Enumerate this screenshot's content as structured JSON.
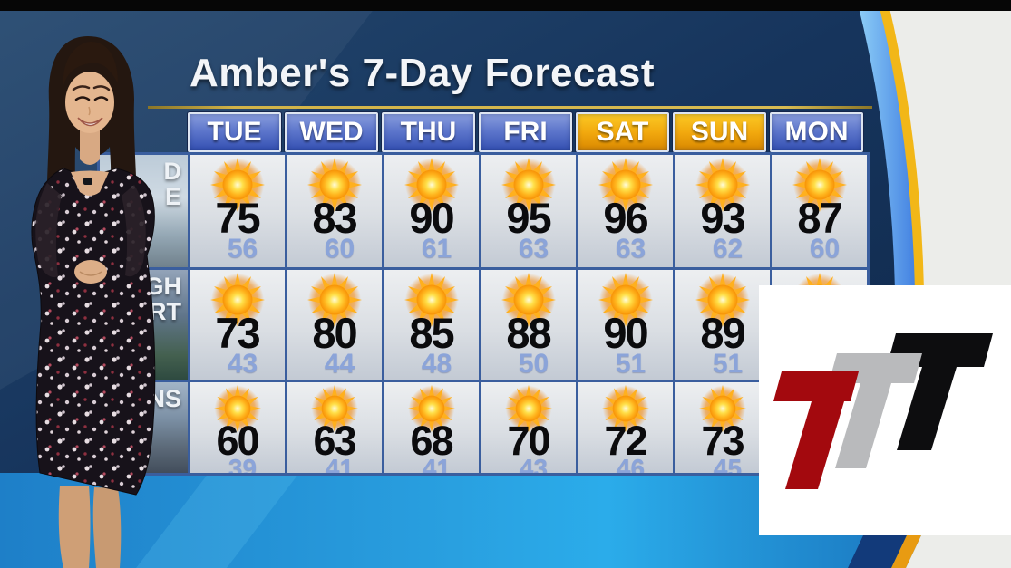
{
  "title": "Amber's 7-Day Forecast",
  "days": [
    {
      "label": "TUE",
      "accent": "blue"
    },
    {
      "label": "WED",
      "accent": "blue"
    },
    {
      "label": "THU",
      "accent": "blue"
    },
    {
      "label": "FRI",
      "accent": "blue"
    },
    {
      "label": "SAT",
      "accent": "gold"
    },
    {
      "label": "SUN",
      "accent": "gold"
    },
    {
      "label": "MON",
      "accent": "blue"
    }
  ],
  "regions": [
    {
      "label_visible_fragments": [
        "D",
        "E"
      ],
      "cells": [
        {
          "icon": "sunny",
          "high": 75,
          "low": 56
        },
        {
          "icon": "sunny",
          "high": 83,
          "low": 60
        },
        {
          "icon": "sunny",
          "high": 90,
          "low": 61
        },
        {
          "icon": "sunny",
          "high": 95,
          "low": 63
        },
        {
          "icon": "sunny",
          "high": 96,
          "low": 63
        },
        {
          "icon": "sunny",
          "high": 93,
          "low": 62
        },
        {
          "icon": "sunny",
          "high": 87,
          "low": 60
        }
      ]
    },
    {
      "label_visible_fragments": [
        "GH",
        "ERT"
      ],
      "cells": [
        {
          "icon": "sunny",
          "high": 73,
          "low": 43
        },
        {
          "icon": "sunny",
          "high": 80,
          "low": 44
        },
        {
          "icon": "sunny",
          "high": 85,
          "low": 48
        },
        {
          "icon": "sunny",
          "high": 88,
          "low": 50
        },
        {
          "icon": "sunny",
          "high": 90,
          "low": 51
        },
        {
          "icon": "sunny",
          "high": 89,
          "low": 51
        },
        {
          "icon": "sunny",
          "high": null,
          "low": null,
          "hidden_by_logo": true
        }
      ]
    },
    {
      "label_visible_fragments": [
        "NS"
      ],
      "cells": [
        {
          "icon": "sunny",
          "high": 60,
          "low": 39
        },
        {
          "icon": "sunny",
          "high": 63,
          "low": 41
        },
        {
          "icon": "sunny",
          "high": 68,
          "low": 41
        },
        {
          "icon": "sunny",
          "high": 70,
          "low": 43
        },
        {
          "icon": "sunny",
          "high": 72,
          "low": 46
        },
        {
          "icon": "sunny",
          "high": 73,
          "low": 45
        },
        {
          "icon": "sunny",
          "high": null,
          "low": null,
          "hidden_by_logo": true
        }
      ]
    }
  ],
  "logo": {
    "letters": [
      {
        "glyph": "T",
        "color": "#a3090e"
      },
      {
        "glyph": "T",
        "color": "#b9babc"
      },
      {
        "glyph": "T",
        "color": "#0d0d0f"
      }
    ]
  },
  "colors": {
    "studio_navy": "#16345c",
    "header_blue": "#3450b2",
    "header_gold": "#f2a90e",
    "high_temp": "#0b0b0d",
    "low_temp": "#8ba4d9",
    "frame_gold": "#f2b718",
    "frame_offwhite": "#ecedea",
    "bottom_blue": "#2196dc"
  },
  "chart_data": {
    "type": "table",
    "title": "Amber's 7-Day Forecast",
    "categories": [
      "TUE",
      "WED",
      "THU",
      "FRI",
      "SAT",
      "SUN",
      "MON"
    ],
    "series": [
      {
        "name": "region row 1 (label fragment \"…D …E\")",
        "condition": "sunny",
        "highs": [
          75,
          83,
          90,
          95,
          96,
          93,
          87
        ],
        "lows": [
          56,
          60,
          61,
          63,
          63,
          62,
          60
        ]
      },
      {
        "name": "region row 2 (label fragment \"…GH …ERT\")",
        "condition": "sunny",
        "highs": [
          73,
          80,
          85,
          88,
          90,
          89,
          null
        ],
        "lows": [
          43,
          44,
          48,
          50,
          51,
          51,
          null
        ]
      },
      {
        "name": "region row 3 (label fragment \"…NS\")",
        "condition": "sunny",
        "highs": [
          60,
          63,
          68,
          70,
          72,
          73,
          null
        ],
        "lows": [
          39,
          41,
          41,
          43,
          46,
          45,
          null
        ]
      }
    ],
    "note": "Monday values in rows 2 and 3 are hidden behind the white station-logo overlay"
  }
}
